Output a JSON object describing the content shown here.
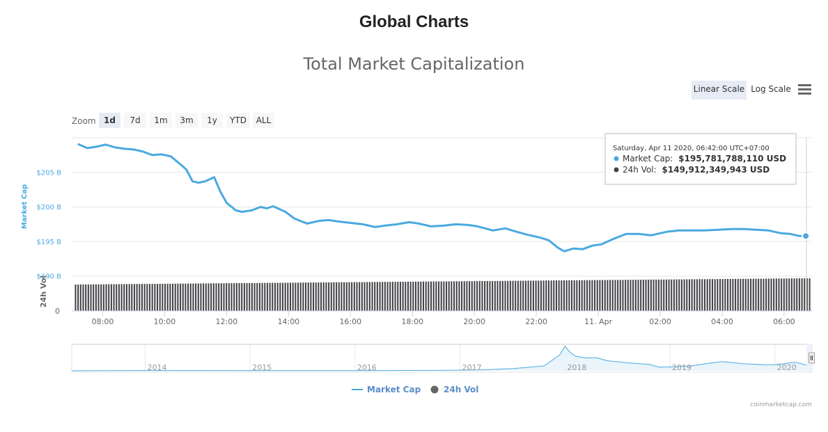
{
  "page": {
    "heading": "Global Charts"
  },
  "colors": {
    "market_cap": "#4aa9e0",
    "volume": "#434348",
    "selected_bg": "#e6ebf5"
  },
  "toolbar": {
    "zoom_label": "Zoom",
    "zoom_options": [
      "1d",
      "7d",
      "1m",
      "3m",
      "1y",
      "YTD",
      "ALL"
    ],
    "zoom_selected": "1d",
    "scale_options": [
      "Linear Scale",
      "Log Scale"
    ],
    "scale_selected": "Linear Scale",
    "menu_icon": "hamburger-menu-icon"
  },
  "chart_data": {
    "type": "line",
    "title": "Total Market Capitalization",
    "xlabel": "",
    "ylabel": "Market Cap",
    "ylabel_secondary": "24h Vol",
    "ylim": [
      190,
      210
    ],
    "y_ticks": [
      "$190 B",
      "$195 B",
      "$200 B",
      "$205 B"
    ],
    "y_tick_values": [
      190,
      195,
      200,
      205
    ],
    "volume_tick": "0",
    "x_ticks": [
      "08:00",
      "10:00",
      "12:00",
      "14:00",
      "16:00",
      "18:00",
      "20:00",
      "22:00",
      "11. Apr",
      "02:00",
      "04:00",
      "06:00"
    ],
    "x_tick_hours": [
      8,
      10,
      12,
      14,
      16,
      18,
      20,
      22,
      24,
      26,
      28,
      30
    ],
    "x_range_hours": [
      7.0,
      30.9
    ],
    "series": [
      {
        "name": "Market Cap",
        "unit": "USD billions",
        "x_hours": [
          7.2,
          7.5,
          7.8,
          8.1,
          8.4,
          8.7,
          9.0,
          9.3,
          9.6,
          9.9,
          10.2,
          10.5,
          10.7,
          10.9,
          11.1,
          11.3,
          11.6,
          11.8,
          12.0,
          12.3,
          12.5,
          12.8,
          13.1,
          13.3,
          13.5,
          13.7,
          13.9,
          14.2,
          14.6,
          15.0,
          15.3,
          15.6,
          16.0,
          16.4,
          16.8,
          17.1,
          17.5,
          17.9,
          18.2,
          18.6,
          19.0,
          19.4,
          19.8,
          20.1,
          20.6,
          21.0,
          21.3,
          21.7,
          22.1,
          22.4,
          22.7,
          22.9,
          23.2,
          23.5,
          23.8,
          24.1,
          24.5,
          24.9,
          25.3,
          25.7,
          26.2,
          26.6,
          27.0,
          27.4,
          27.9,
          28.3,
          28.7,
          29.1,
          29.5,
          29.9,
          30.2,
          30.5,
          30.7
        ],
        "values": [
          209.1,
          208.5,
          208.7,
          209.0,
          208.6,
          208.4,
          208.3,
          208.0,
          207.5,
          207.6,
          207.3,
          206.2,
          205.4,
          203.7,
          203.5,
          203.7,
          204.3,
          202.2,
          200.6,
          199.5,
          199.3,
          199.5,
          200.0,
          199.8,
          200.1,
          199.7,
          199.3,
          198.3,
          197.6,
          198.0,
          198.1,
          197.9,
          197.7,
          197.5,
          197.1,
          197.3,
          197.5,
          197.8,
          197.6,
          197.2,
          197.3,
          197.5,
          197.4,
          197.2,
          196.6,
          196.9,
          196.5,
          196.0,
          195.6,
          195.2,
          194.1,
          193.6,
          194.0,
          193.9,
          194.4,
          194.6,
          195.4,
          196.1,
          196.1,
          195.9,
          196.4,
          196.6,
          196.6,
          196.6,
          196.7,
          196.8,
          196.8,
          196.7,
          196.6,
          196.2,
          196.1,
          195.8,
          195.8
        ]
      },
      {
        "name": "24h Vol",
        "unit": "USD billions",
        "x_range_hours": [
          7.1,
          30.8
        ],
        "start_value": 145.2,
        "end_value": 149.9
      }
    ],
    "tooltip": {
      "date": "Saturday, Apr 11 2020, 06:42:00 UTC+07:00",
      "market_cap_label": "Market Cap:",
      "market_cap_value": "$195,781,788,110 USD",
      "vol_label": "24h Vol:",
      "vol_value": "$149,912,349,943 USD"
    },
    "navigator": {
      "year_labels": [
        "2014",
        "2015",
        "2016",
        "2017",
        "2018",
        "2019",
        "2020"
      ],
      "years": [
        2014,
        2015,
        2016,
        2017,
        2018,
        2019,
        2020
      ],
      "x_range_years": [
        2013.3,
        2020.3
      ],
      "overview_years": [
        2013.3,
        2014.0,
        2015.0,
        2016.0,
        2016.8,
        2017.2,
        2017.5,
        2017.8,
        2017.95,
        2018.0,
        2018.05,
        2018.1,
        2018.2,
        2018.3,
        2018.4,
        2018.6,
        2018.8,
        2018.9,
        2019.0,
        2019.2,
        2019.4,
        2019.5,
        2019.7,
        2019.9,
        2020.0,
        2020.1,
        2020.2,
        2020.3
      ],
      "overview_values": [
        1,
        10,
        6,
        7,
        14,
        28,
        70,
        160,
        520,
        800,
        600,
        480,
        420,
        430,
        330,
        260,
        210,
        120,
        125,
        160,
        260,
        300,
        230,
        200,
        195,
        240,
        280,
        190
      ]
    },
    "legend": [
      "Market Cap",
      "24h Vol"
    ],
    "legend_position": "bottom-center",
    "credit": "coinmarketcap.com"
  }
}
